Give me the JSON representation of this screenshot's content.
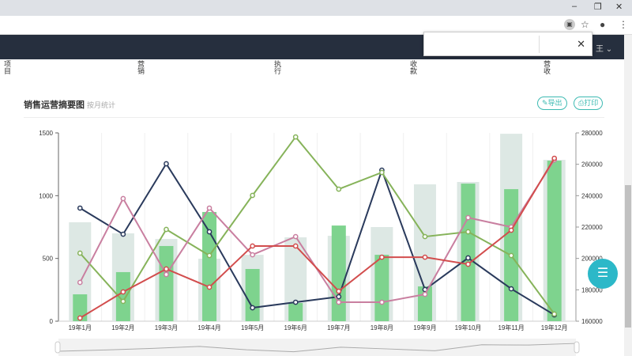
{
  "browser": {
    "minimize": "–",
    "restore": "❐",
    "close": "✕",
    "icons": [
      "extension-icon",
      "star-icon",
      "account-icon",
      "menu-icon"
    ]
  },
  "nav": {
    "user_label": "王 ⌄"
  },
  "popup": {
    "close": "✕"
  },
  "columns": [
    "项目",
    "营销",
    "执行",
    "收款",
    "营收"
  ],
  "panel": {
    "title": "销售运营摘要图",
    "subtitle": "按月统计",
    "export_label": "✎导出",
    "print_label": "⎙打印"
  },
  "fab": {
    "icon": "menu-icon",
    "label": "☰"
  },
  "colors": {
    "navy": "#2a3a5c",
    "olive": "#86b35a",
    "pink": "#c97fa0",
    "red": "#d24d4d",
    "bar": "#7ed38e",
    "bar_bg": "#dde8e4",
    "accent": "#3cbab2"
  },
  "chart_data": {
    "type": "bar+line",
    "categories": [
      "19年1月",
      "19年2月",
      "19年3月",
      "19年4月",
      "19年5月",
      "19年6月",
      "19年7月",
      "19年8月",
      "19年9月",
      "19年10月",
      "19年11月",
      "19年12月"
    ],
    "y_left": {
      "range": [
        0,
        1500
      ],
      "ticks": [
        0,
        500,
        1000,
        1500
      ]
    },
    "y_right": {
      "range": [
        160000,
        280000
      ],
      "ticks": [
        160000,
        180000,
        200000,
        220000,
        240000,
        260000,
        280000
      ]
    },
    "grid": true,
    "bars_background": [
      788,
      700,
      655,
      498,
      529,
      668,
      680,
      750,
      1090,
      1109,
      1493,
      1285
    ],
    "bars": [
      214,
      391,
      599,
      870,
      416,
      145,
      762,
      529,
      277,
      1096,
      1052,
      1279
    ],
    "series": [
      {
        "color": "#2a3a5c",
        "values": [
          901,
          693,
          1254,
          712,
          107,
          151,
          195,
          1203,
          252,
          504,
          258,
          50
        ]
      },
      {
        "color": "#86b35a",
        "values": [
          542,
          158,
          731,
          523,
          1002,
          1468,
          1052,
          1185,
          674,
          712,
          523,
          57
        ]
      },
      {
        "color": "#c97fa0",
        "values": [
          309,
          977,
          372,
          901,
          529,
          674,
          151,
          151,
          214,
          825,
          750,
          1285
        ]
      },
      {
        "color": "#d24d4d",
        "values": [
          25,
          233,
          416,
          271,
          599,
          599,
          239,
          510,
          510,
          454,
          725,
          1298
        ]
      }
    ],
    "datazoom": true
  }
}
